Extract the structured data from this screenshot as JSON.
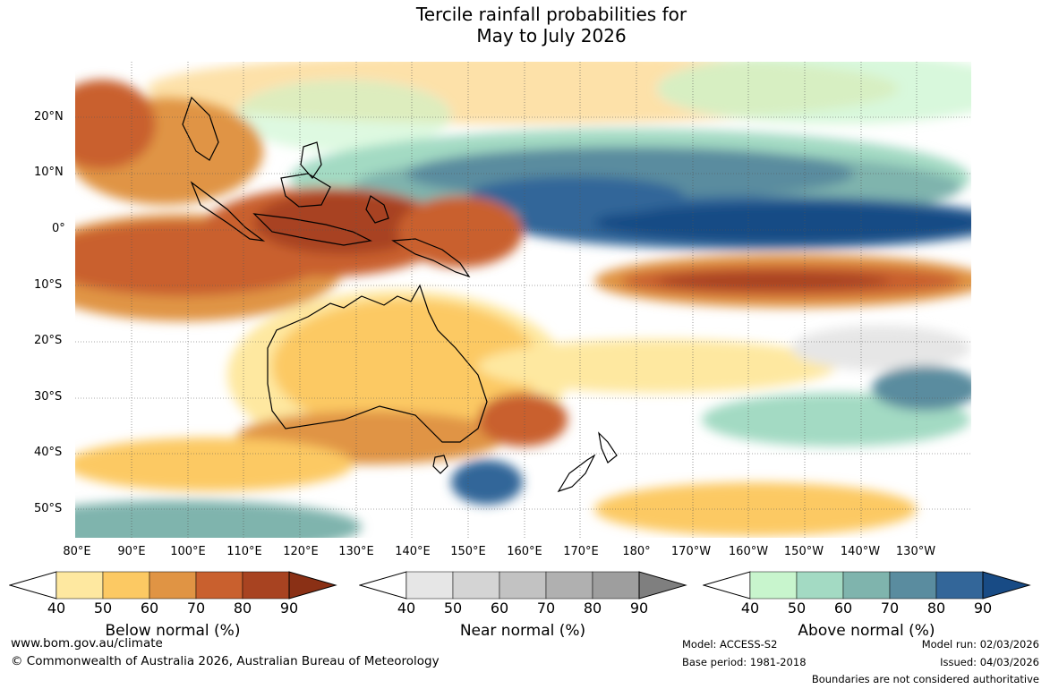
{
  "title": {
    "line1": "Tercile rainfall probabilities for",
    "line2": "May to July 2026"
  },
  "axes": {
    "lat_labels": [
      "20°N",
      "10°N",
      "0°",
      "10°S",
      "20°S",
      "30°S",
      "40°S",
      "50°S"
    ],
    "lon_labels": [
      "80°E",
      "90°E",
      "100°E",
      "110°E",
      "120°E",
      "130°E",
      "140°E",
      "150°E",
      "160°E",
      "170°E",
      "180°",
      "170°W",
      "160°W",
      "150°W",
      "140°W",
      "130°W"
    ]
  },
  "colorbars": {
    "ticks": [
      "40",
      "50",
      "60",
      "70",
      "80",
      "90"
    ],
    "below": {
      "label": "Below normal (%)",
      "colors": [
        "#ffffff",
        "#fee8a0",
        "#fcc963",
        "#e09444",
        "#c9602e",
        "#a84321",
        "#8a3015"
      ]
    },
    "near": {
      "label": "Near normal (%)",
      "colors": [
        "#ffffff",
        "#e6e6e6",
        "#d4d4d4",
        "#c2c2c2",
        "#b0b0b0",
        "#9e9e9e",
        "#7f7f7f"
      ]
    },
    "above": {
      "label": "Above normal (%)",
      "colors": [
        "#ffffff",
        "#c8f5cd",
        "#a3dac3",
        "#7fb4ad",
        "#5a8c9f",
        "#336699",
        "#184b85"
      ]
    }
  },
  "footer": {
    "url": "www.bom.gov.au/climate",
    "copyright": "© Commonwealth of Australia 2026, Australian Bureau of Meteorology",
    "model": "Model: ACCESS-S2",
    "base_period": "Base period: 1981-2018",
    "model_run": "Model run: 02/03/2026",
    "issued": "Issued: 04/03/2026",
    "disclaimer": "Boundaries are not considered authoritative"
  }
}
